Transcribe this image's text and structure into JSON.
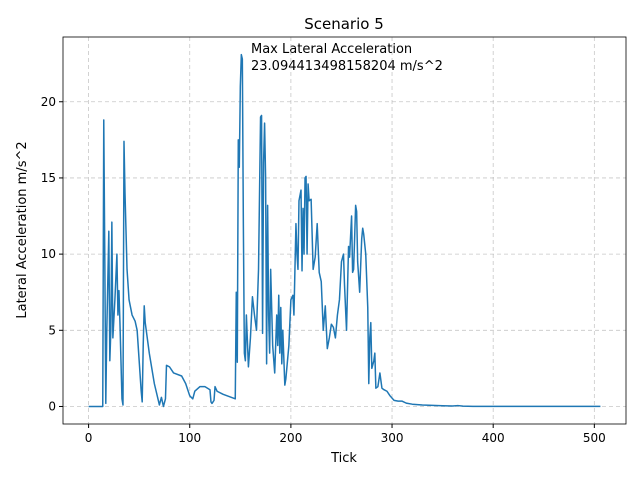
{
  "chart_data": {
    "type": "line",
    "title": "Scenario 5",
    "x_label": "Tick",
    "y_label": "Lateral Acceleration m/s^2",
    "annotation": [
      "Max Lateral Acceleration",
      "23.094413498158204 m/s^2"
    ],
    "xlim": [
      -25.3,
      531.3
    ],
    "ylim": [
      -1.15,
      24.25
    ],
    "xticks": [
      0,
      100,
      200,
      300,
      400,
      500
    ],
    "yticks": [
      0,
      5,
      10,
      15,
      20
    ],
    "grid": true,
    "series": [
      {
        "name": "Lateral Acceleration",
        "color": "#1f77b4",
        "x": [
          0,
          14,
          15,
          16,
          17,
          18,
          20,
          21,
          22,
          23,
          24,
          26,
          28,
          29,
          30,
          31,
          33,
          34,
          35,
          36,
          38,
          40,
          43,
          46,
          48,
          50,
          52,
          53,
          54,
          55,
          56,
          60,
          65,
          70,
          72,
          74,
          76,
          77,
          80,
          84,
          92,
          96,
          100,
          103,
          105,
          110,
          115,
          120,
          121,
          122,
          124,
          125,
          127,
          133,
          145,
          146,
          147,
          148,
          149,
          150,
          151,
          152,
          153,
          154,
          155,
          156,
          158,
          160,
          162,
          164,
          166,
          168,
          170,
          171,
          172,
          173,
          174,
          175,
          176,
          177,
          178,
          179,
          180,
          182,
          184,
          186,
          187,
          188,
          189,
          190,
          191,
          192,
          194,
          195,
          198,
          200,
          202,
          203,
          205,
          206,
          207,
          208,
          210,
          211,
          212,
          213,
          214,
          215,
          216,
          217,
          218,
          220,
          222,
          224,
          226,
          228,
          230,
          232,
          234,
          236,
          238,
          240,
          242,
          244,
          246,
          248,
          250,
          252,
          253,
          255,
          257,
          258,
          260,
          261,
          262,
          263,
          264,
          265,
          266,
          268,
          270,
          271,
          272,
          274,
          276,
          277,
          278,
          279,
          280,
          282,
          283,
          284,
          286,
          288,
          290,
          292,
          295,
          298,
          302,
          306,
          310,
          314,
          320,
          330,
          340,
          350,
          360,
          365,
          370,
          380,
          400,
          450,
          506
        ],
        "values": [
          0,
          0,
          18.8,
          10,
          0.2,
          5,
          11.5,
          3,
          5,
          12.1,
          4.5,
          7,
          10,
          6,
          7.6,
          5.5,
          0.5,
          0.1,
          17.4,
          14,
          9,
          7,
          6,
          5.6,
          5,
          3,
          1,
          0.3,
          4,
          6.6,
          5.5,
          3.5,
          1.5,
          0.1,
          0.6,
          0,
          0.5,
          2.7,
          2.6,
          2.2,
          2.0,
          1.5,
          0.7,
          0.5,
          1.0,
          1.3,
          1.3,
          1.1,
          0.3,
          0.2,
          0.4,
          1.3,
          1.0,
          0.8,
          0.5,
          7.5,
          2.9,
          17.5,
          15.7,
          21,
          23.09,
          22.8,
          12,
          3.5,
          3.0,
          6,
          2.6,
          4.5,
          7.2,
          6,
          5,
          9,
          19,
          19.1,
          4.8,
          16,
          18.6,
          15,
          2.8,
          13.2,
          6,
          3.5,
          9,
          4,
          2.2,
          6,
          4,
          7.3,
          3.5,
          6.5,
          2.8,
          5,
          1.4,
          1.8,
          4,
          7,
          7.3,
          6,
          12,
          10,
          9,
          13.5,
          14.2,
          8.9,
          13,
          10,
          15,
          15.1,
          10,
          14.6,
          13.5,
          13.6,
          9,
          9.8,
          12,
          8.8,
          8.2,
          5,
          6.6,
          3.8,
          4.5,
          5.4,
          5.2,
          4.5,
          6,
          7,
          9.5,
          10,
          8,
          5,
          10.5,
          9.8,
          12.5,
          8.8,
          9,
          11,
          13.2,
          12.8,
          9.5,
          7.5,
          11,
          11.7,
          11.3,
          10,
          6.5,
          1.5,
          4.5,
          5.5,
          2.5,
          3,
          3.5,
          1.2,
          1.3,
          2.2,
          1.2,
          1.1,
          1.0,
          0.7,
          0.4,
          0.35,
          0.35,
          0.22,
          0.15,
          0.1,
          0.07,
          0.05,
          0.03,
          0.06,
          0.02,
          0.01,
          0.01,
          0.01,
          0.01
        ]
      }
    ]
  }
}
